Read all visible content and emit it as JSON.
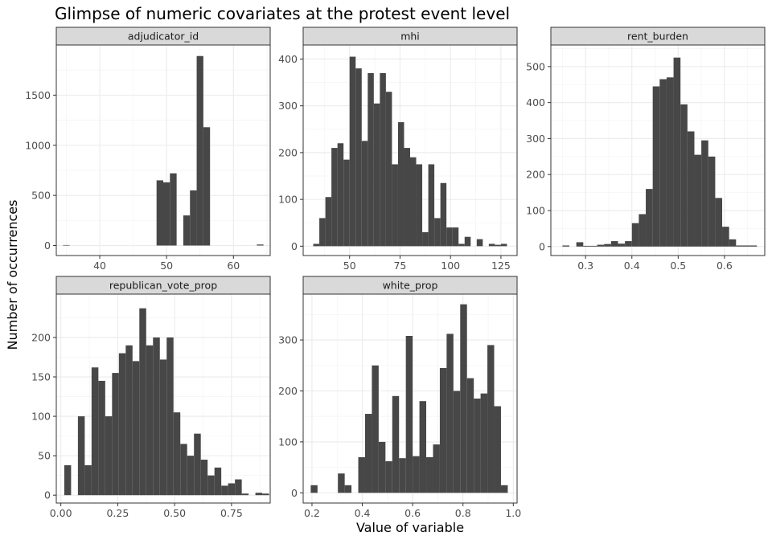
{
  "title": "Glimpse of numeric covariates at the protest event level",
  "xlabel": "Value of variable",
  "ylabel": "Number of occurrences",
  "colors": {
    "bar": "#474747",
    "panel_border": "#333333",
    "strip_fill": "#d9d9d9",
    "grid_major": "#ebebeb",
    "grid_minor": "#f5f5f5"
  },
  "chart_data": [
    {
      "type": "bar",
      "panel": "adjudicator_id",
      "xlim": [
        33.5,
        65.5
      ],
      "ylim": [
        -100,
        2000
      ],
      "x_ticks": [
        40,
        50,
        60
      ],
      "x_tick_labels": [
        "40",
        "50",
        "60"
      ],
      "y_ticks": [
        0,
        500,
        1000,
        1500
      ],
      "y_tick_labels": [
        "0",
        "500",
        "1000",
        "1500"
      ],
      "bins": [
        [
          34.5,
          35.5,
          5
        ],
        [
          48.5,
          49.5,
          650
        ],
        [
          49.5,
          50.5,
          630
        ],
        [
          50.5,
          51.5,
          720
        ],
        [
          52.5,
          53.5,
          300
        ],
        [
          53.5,
          54.5,
          550
        ],
        [
          54.5,
          55.5,
          1890
        ],
        [
          55.5,
          56.5,
          1180
        ],
        [
          63.5,
          64.5,
          10
        ]
      ]
    },
    {
      "type": "bar",
      "panel": "mhi",
      "xlim": [
        27,
        133
      ],
      "ylim": [
        -20,
        430
      ],
      "x_ticks": [
        50,
        75,
        100,
        125
      ],
      "x_tick_labels": [
        "50",
        "75",
        "100",
        "125"
      ],
      "y_ticks": [
        0,
        100,
        200,
        300,
        400
      ],
      "y_tick_labels": [
        "0",
        "100",
        "200",
        "300",
        "400"
      ],
      "bins": [
        [
          32,
          35,
          5
        ],
        [
          35,
          38,
          60
        ],
        [
          38,
          41,
          105
        ],
        [
          41,
          44,
          210
        ],
        [
          44,
          47,
          220
        ],
        [
          47,
          50,
          185
        ],
        [
          50,
          53,
          405
        ],
        [
          53,
          56,
          380
        ],
        [
          56,
          59,
          225
        ],
        [
          59,
          62,
          370
        ],
        [
          62,
          65,
          305
        ],
        [
          65,
          68,
          370
        ],
        [
          68,
          71,
          330
        ],
        [
          71,
          74,
          175
        ],
        [
          74,
          77,
          265
        ],
        [
          77,
          80,
          210
        ],
        [
          80,
          83,
          190
        ],
        [
          83,
          86,
          175
        ],
        [
          86,
          89,
          30
        ],
        [
          89,
          92,
          175
        ],
        [
          92,
          95,
          60
        ],
        [
          95,
          98,
          135
        ],
        [
          98,
          101,
          40
        ],
        [
          101,
          104,
          40
        ],
        [
          104,
          107,
          5
        ],
        [
          107,
          110,
          20
        ],
        [
          113,
          116,
          15
        ],
        [
          119,
          122,
          5
        ],
        [
          122,
          125,
          3
        ],
        [
          125,
          128,
          5
        ]
      ]
    },
    {
      "type": "bar",
      "panel": "rent_burden",
      "xlim": [
        0.225,
        0.687
      ],
      "ylim": [
        -25,
        560
      ],
      "x_ticks": [
        0.3,
        0.4,
        0.5,
        0.6
      ],
      "x_tick_labels": [
        "0.3",
        "0.4",
        "0.5",
        "0.6"
      ],
      "y_ticks": [
        0,
        100,
        200,
        300,
        400,
        500
      ],
      "y_tick_labels": [
        "0",
        "100",
        "200",
        "300",
        "400",
        "500"
      ],
      "bins": [
        [
          0.25,
          0.265,
          3
        ],
        [
          0.28,
          0.295,
          12
        ],
        [
          0.295,
          0.31,
          2
        ],
        [
          0.31,
          0.325,
          2
        ],
        [
          0.325,
          0.34,
          5
        ],
        [
          0.34,
          0.355,
          7
        ],
        [
          0.355,
          0.37,
          15
        ],
        [
          0.37,
          0.385,
          8
        ],
        [
          0.385,
          0.4,
          15
        ],
        [
          0.4,
          0.415,
          65
        ],
        [
          0.415,
          0.43,
          90
        ],
        [
          0.43,
          0.445,
          160
        ],
        [
          0.445,
          0.46,
          445
        ],
        [
          0.46,
          0.475,
          465
        ],
        [
          0.475,
          0.49,
          470
        ],
        [
          0.49,
          0.505,
          525
        ],
        [
          0.505,
          0.52,
          395
        ],
        [
          0.52,
          0.535,
          320
        ],
        [
          0.535,
          0.55,
          255
        ],
        [
          0.55,
          0.565,
          295
        ],
        [
          0.565,
          0.58,
          250
        ],
        [
          0.58,
          0.595,
          135
        ],
        [
          0.595,
          0.61,
          55
        ],
        [
          0.61,
          0.625,
          20
        ],
        [
          0.625,
          0.64,
          3
        ],
        [
          0.64,
          0.655,
          3
        ],
        [
          0.655,
          0.67,
          3
        ]
      ]
    },
    {
      "type": "bar",
      "panel": "republican_vote_prop",
      "xlim": [
        -0.02,
        0.92
      ],
      "ylim": [
        -10,
        255
      ],
      "x_ticks": [
        0.0,
        0.25,
        0.5,
        0.75
      ],
      "x_tick_labels": [
        "0.00",
        "0.25",
        "0.50",
        "0.75"
      ],
      "y_ticks": [
        0,
        50,
        100,
        150,
        200
      ],
      "y_tick_labels": [
        "0",
        "50",
        "100",
        "150",
        "200"
      ],
      "bins": [
        [
          0.015,
          0.045,
          38
        ],
        [
          0.075,
          0.105,
          100
        ],
        [
          0.105,
          0.135,
          38
        ],
        [
          0.135,
          0.165,
          162
        ],
        [
          0.165,
          0.195,
          145
        ],
        [
          0.195,
          0.225,
          100
        ],
        [
          0.225,
          0.255,
          155
        ],
        [
          0.255,
          0.285,
          180
        ],
        [
          0.285,
          0.315,
          190
        ],
        [
          0.315,
          0.345,
          170
        ],
        [
          0.345,
          0.375,
          237
        ],
        [
          0.375,
          0.405,
          190
        ],
        [
          0.405,
          0.435,
          200
        ],
        [
          0.435,
          0.465,
          172
        ],
        [
          0.465,
          0.495,
          200
        ],
        [
          0.495,
          0.525,
          105
        ],
        [
          0.525,
          0.555,
          65
        ],
        [
          0.555,
          0.585,
          50
        ],
        [
          0.585,
          0.615,
          78
        ],
        [
          0.615,
          0.645,
          45
        ],
        [
          0.645,
          0.675,
          25
        ],
        [
          0.675,
          0.705,
          35
        ],
        [
          0.705,
          0.735,
          12
        ],
        [
          0.735,
          0.765,
          15
        ],
        [
          0.765,
          0.795,
          20
        ],
        [
          0.795,
          0.825,
          2
        ],
        [
          0.855,
          0.885,
          3
        ],
        [
          0.885,
          0.915,
          2
        ]
      ]
    },
    {
      "type": "bar",
      "panel": "white_prop",
      "xlim": [
        0.165,
        1.015
      ],
      "ylim": [
        -20,
        390
      ],
      "x_ticks": [
        0.2,
        0.4,
        0.6,
        0.8,
        1.0
      ],
      "x_tick_labels": [
        "0.2",
        "0.4",
        "0.6",
        "0.8",
        "1.0"
      ],
      "y_ticks": [
        0,
        100,
        200,
        300
      ],
      "y_tick_labels": [
        "0",
        "100",
        "200",
        "300"
      ],
      "bins": [
        [
          0.195,
          0.222,
          15
        ],
        [
          0.303,
          0.33,
          38
        ],
        [
          0.33,
          0.357,
          15
        ],
        [
          0.384,
          0.411,
          70
        ],
        [
          0.411,
          0.438,
          155
        ],
        [
          0.438,
          0.465,
          250
        ],
        [
          0.465,
          0.492,
          100
        ],
        [
          0.492,
          0.519,
          62
        ],
        [
          0.519,
          0.546,
          190
        ],
        [
          0.546,
          0.573,
          68
        ],
        [
          0.573,
          0.6,
          308
        ],
        [
          0.6,
          0.627,
          72
        ],
        [
          0.627,
          0.654,
          180
        ],
        [
          0.654,
          0.681,
          70
        ],
        [
          0.681,
          0.708,
          95
        ],
        [
          0.708,
          0.735,
          245
        ],
        [
          0.735,
          0.762,
          312
        ],
        [
          0.762,
          0.789,
          200
        ],
        [
          0.789,
          0.816,
          370
        ],
        [
          0.816,
          0.843,
          225
        ],
        [
          0.843,
          0.87,
          185
        ],
        [
          0.87,
          0.897,
          195
        ],
        [
          0.897,
          0.924,
          290
        ],
        [
          0.924,
          0.951,
          170
        ],
        [
          0.951,
          0.978,
          15
        ]
      ]
    }
  ]
}
